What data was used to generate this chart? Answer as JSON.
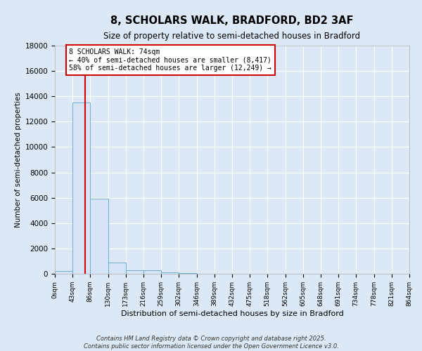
{
  "title1": "8, SCHOLARS WALK, BRADFORD, BD2 3AF",
  "title2": "Size of property relative to semi-detached houses in Bradford",
  "xlabel": "Distribution of semi-detached houses by size in Bradford",
  "ylabel": "Number of semi-detached properties",
  "bin_edges": [
    0,
    43,
    86,
    130,
    173,
    216,
    259,
    302,
    346,
    389,
    432,
    475,
    518,
    562,
    605,
    648,
    691,
    734,
    778,
    821,
    864
  ],
  "bar_heights": [
    200,
    13500,
    5900,
    900,
    250,
    250,
    100,
    60,
    0,
    0,
    0,
    0,
    0,
    0,
    0,
    0,
    0,
    0,
    0,
    0
  ],
  "bar_color": "#d6e4f5",
  "bar_edge_color": "#6baed6",
  "property_size": 74,
  "red_line_color": "#cc0000",
  "annotation_text": "8 SCHOLARS WALK: 74sqm\n← 40% of semi-detached houses are smaller (8,417)\n58% of semi-detached houses are larger (12,249) →",
  "annotation_box_color": "#ffffff",
  "annotation_border_color": "#cc0000",
  "ylim": [
    0,
    18000
  ],
  "yticks": [
    0,
    2000,
    4000,
    6000,
    8000,
    10000,
    12000,
    14000,
    16000,
    18000
  ],
  "background_color": "#dce8f5",
  "grid_color": "#ffffff",
  "footer_line1": "Contains HM Land Registry data © Crown copyright and database right 2025.",
  "footer_line2": "Contains public sector information licensed under the Open Government Licence v3.0."
}
